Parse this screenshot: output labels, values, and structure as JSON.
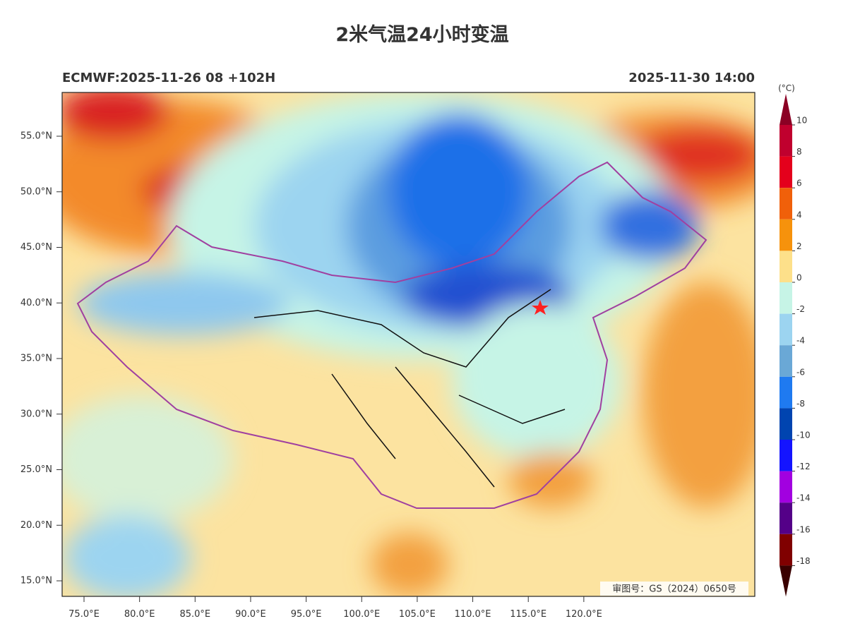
{
  "header": {
    "title": "2米气温24小时变温",
    "model_run": "ECMWF:2025-11-26 08 +102H",
    "valid_time": "2025-11-30 14:00"
  },
  "map": {
    "lat_ticks": [
      {
        "value": 55,
        "label": "55.0°N"
      },
      {
        "value": 50,
        "label": "50.0°N"
      },
      {
        "value": 45,
        "label": "45.0°N"
      },
      {
        "value": 40,
        "label": "40.0°N"
      },
      {
        "value": 35,
        "label": "35.0°N"
      },
      {
        "value": 30,
        "label": "30.0°N"
      },
      {
        "value": 25,
        "label": "25.0°N"
      },
      {
        "value": 20,
        "label": "20.0°N"
      },
      {
        "value": 15,
        "label": "15.0°N"
      }
    ],
    "lon_ticks": [
      {
        "value": 75,
        "label": "75.0°E"
      },
      {
        "value": 80,
        "label": "80.0°E"
      },
      {
        "value": 85,
        "label": "85.0°E"
      },
      {
        "value": 90,
        "label": "90.0°E"
      },
      {
        "value": 95,
        "label": "95.0°E"
      },
      {
        "value": 100,
        "label": "100.0°E"
      },
      {
        "value": 105,
        "label": "105.0°E"
      },
      {
        "value": 110,
        "label": "110.0°E"
      },
      {
        "value": 115,
        "label": "115.0°E"
      },
      {
        "value": 120,
        "label": "120.0°E"
      }
    ],
    "approval": "审图号：GS（2024）0650号"
  },
  "colorbar": {
    "unit": "(°C)",
    "levels": [
      10,
      8,
      6,
      4,
      2,
      0,
      -2,
      -4,
      -6,
      -8,
      -10,
      -12,
      -14,
      -16,
      -18
    ],
    "colors": [
      "#8b0024",
      "#c0002e",
      "#e4001c",
      "#f0600a",
      "#f6920c",
      "#fde08a",
      "#c6f4e6",
      "#9cd4f0",
      "#6aa8d6",
      "#1f7af0",
      "#0044b0",
      "#1414ff",
      "#a200e0",
      "#540088",
      "#800000",
      "#3a0000"
    ]
  }
}
